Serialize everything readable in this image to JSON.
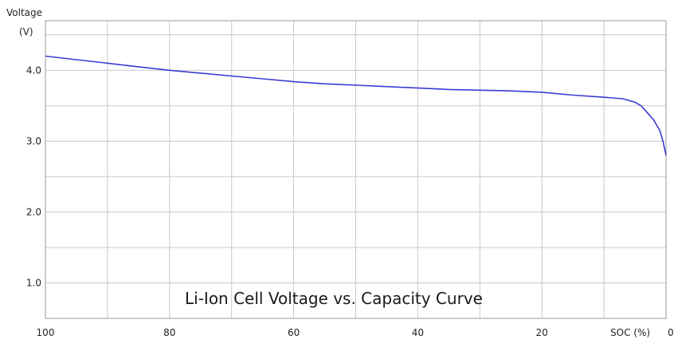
{
  "chart_data": {
    "type": "line",
    "title": "Li-Ion Cell Voltage vs. Capacity Curve",
    "ylabel_line1": "Voltage",
    "ylabel_line2": "(V)",
    "xlabel": "SOC (%)",
    "x_reversed": true,
    "xlim": [
      100,
      0
    ],
    "ylim": [
      0.5,
      4.7
    ],
    "x_ticks": [
      100,
      80,
      60,
      40,
      20,
      0
    ],
    "x_tick_labels": [
      "100",
      "80",
      "60",
      "40",
      "20",
      "0"
    ],
    "y_ticks": [
      1.0,
      2.0,
      3.0,
      4.0
    ],
    "y_tick_labels": [
      "1.0",
      "2.0",
      "3.0",
      "4.0"
    ],
    "grid": true,
    "series": [
      {
        "color": "#3b3bd6",
        "x": [
          100,
          95,
          90,
          85,
          80,
          75,
          70,
          65,
          60,
          55,
          50,
          45,
          40,
          35,
          30,
          25,
          20,
          15,
          10,
          7,
          5,
          4,
          3,
          2,
          1,
          0.5,
          0
        ],
        "y": [
          4.2,
          4.15,
          4.1,
          4.05,
          4.0,
          3.96,
          3.92,
          3.88,
          3.84,
          3.81,
          3.79,
          3.77,
          3.75,
          3.73,
          3.72,
          3.71,
          3.69,
          3.65,
          3.62,
          3.6,
          3.55,
          3.5,
          3.4,
          3.3,
          3.15,
          3.0,
          2.8
        ]
      }
    ]
  }
}
